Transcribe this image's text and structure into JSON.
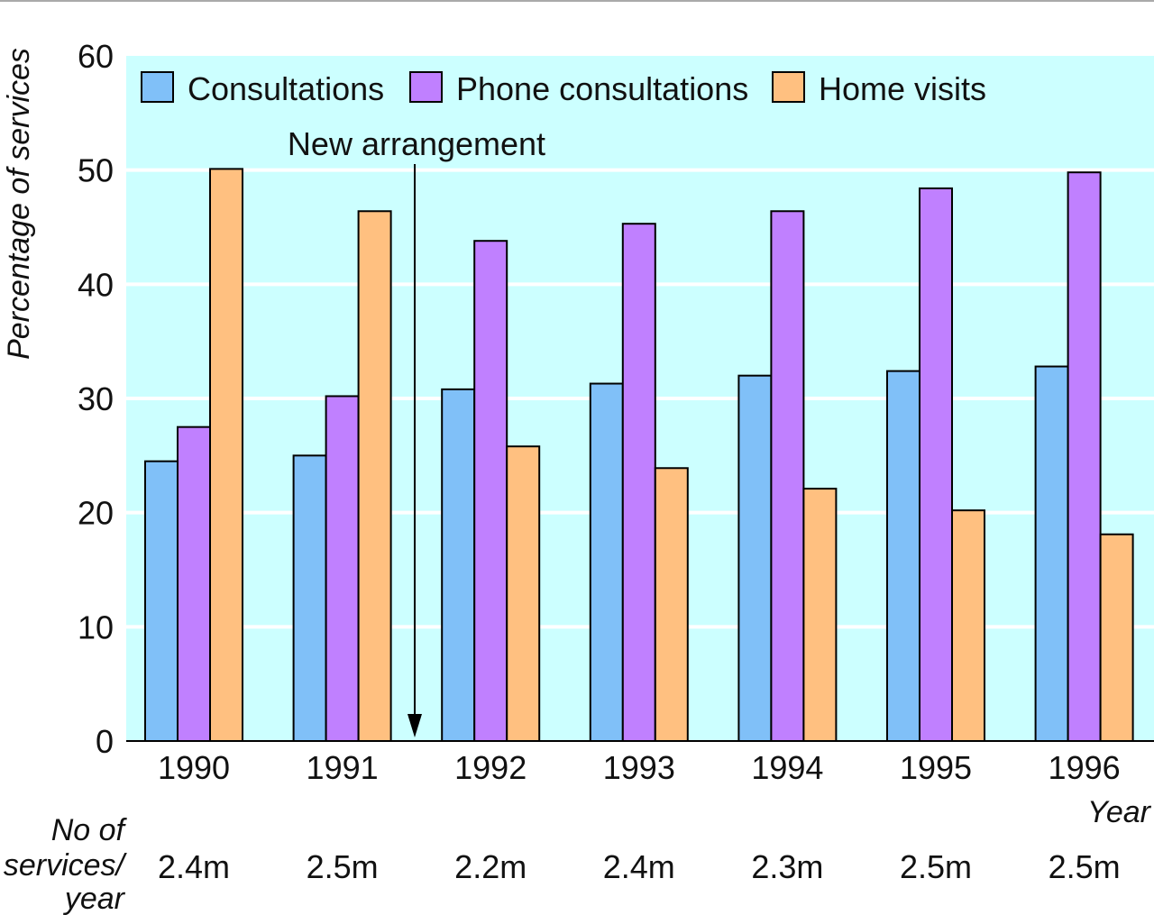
{
  "chart_data": {
    "type": "bar",
    "categories": [
      "1990",
      "1991",
      "1992",
      "1993",
      "1994",
      "1995",
      "1996"
    ],
    "series": [
      {
        "name": "Consultations",
        "color": "#80c0f8",
        "values": [
          24.5,
          25,
          30.8,
          31.3,
          32,
          32.4,
          32.8
        ]
      },
      {
        "name": "Phone consultations",
        "color": "#c080ff",
        "values": [
          27.5,
          30.2,
          43.8,
          45.3,
          46.4,
          48.4,
          49.8
        ]
      },
      {
        "name": "Home visits",
        "color": "#ffc080",
        "values": [
          50.1,
          46.4,
          25.8,
          23.9,
          22.1,
          20.2,
          18.1
        ]
      }
    ],
    "xlabel": "Year",
    "ylabel": "Percentage of services",
    "ylim": [
      0,
      60
    ],
    "yticks": [
      "0",
      "10",
      "20",
      "30",
      "40",
      "50",
      "60"
    ],
    "grid": true,
    "legend_position": "top",
    "plot_background": "#ccffff",
    "annotation": {
      "text": "New arrangement",
      "between": [
        "1991",
        "1992"
      ]
    },
    "services_label": [
      "No of",
      "services/",
      "year"
    ],
    "services_per_year": [
      "2.4m",
      "2.5m",
      "2.2m",
      "2.4m",
      "2.3m",
      "2.5m",
      "2.5m"
    ]
  }
}
